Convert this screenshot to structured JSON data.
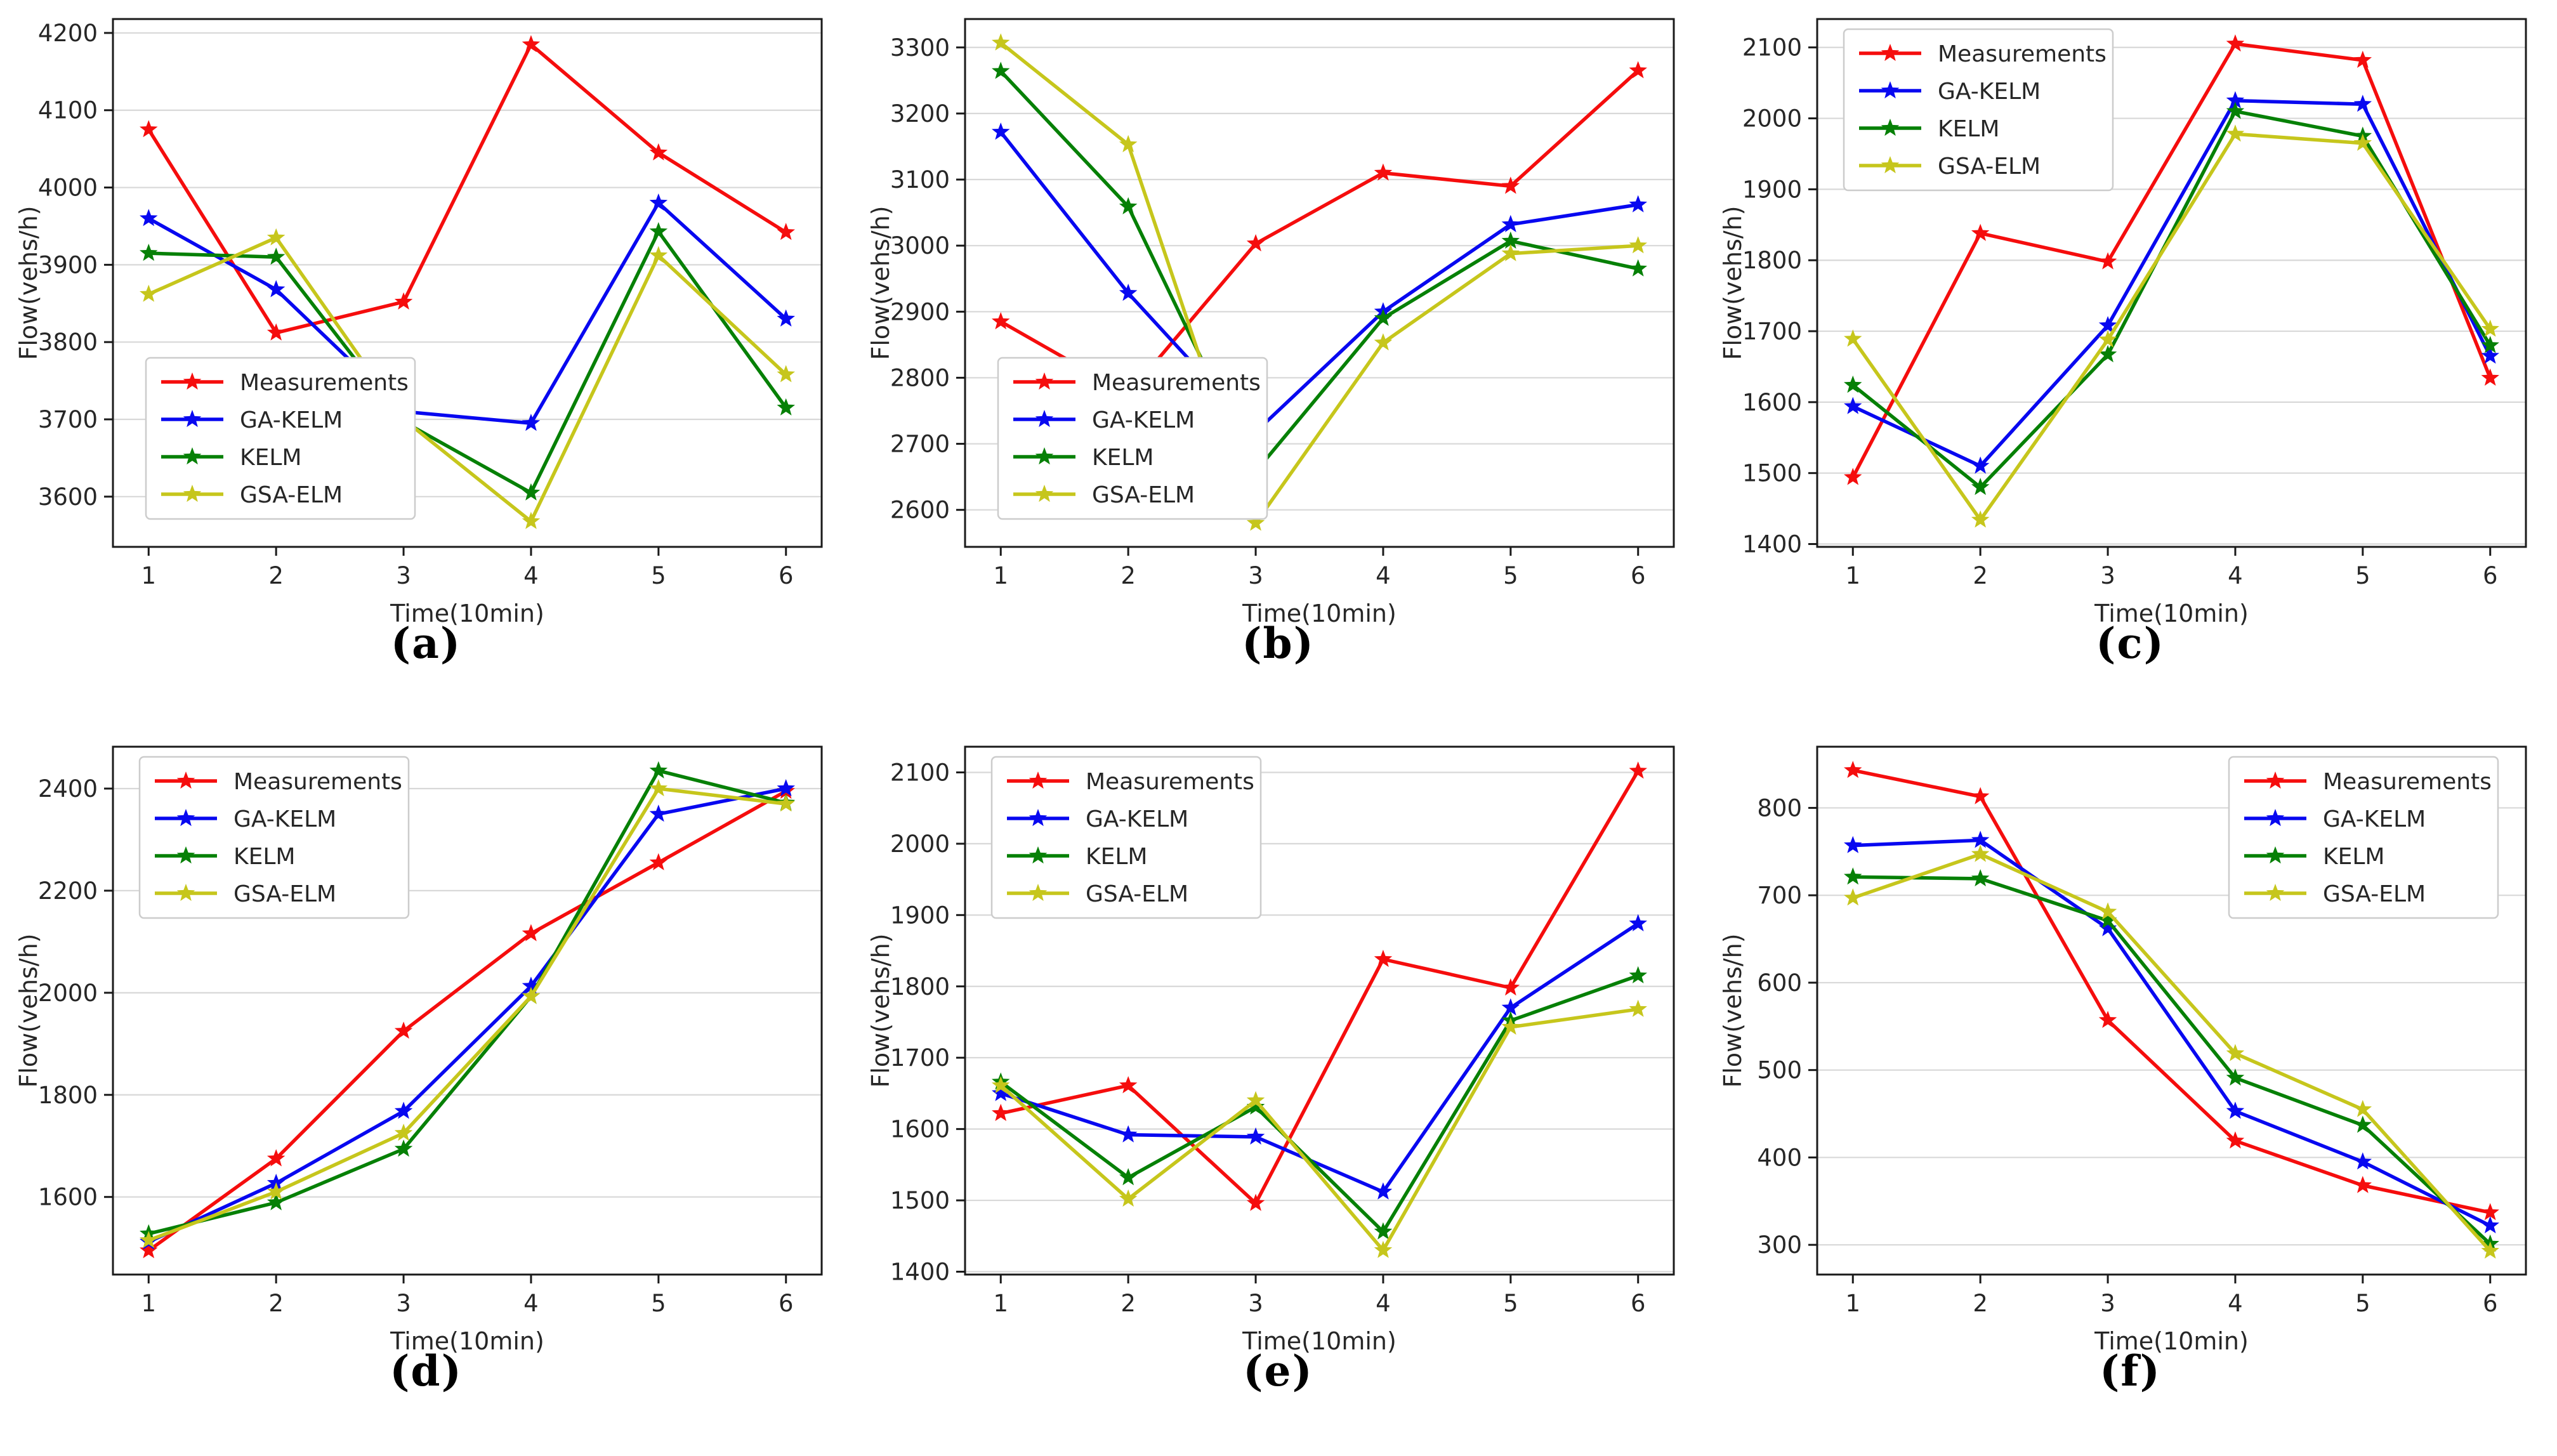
{
  "figure": {
    "xlabel": "Time(10min)",
    "ylabel": "Flow(vehs/h)",
    "legend_entries": [
      "Measurements",
      "GA-KELM",
      "KELM",
      "GSA-ELM"
    ],
    "palette": {
      "measurements": "#f50d0d",
      "ga_kelm": "#0808f0",
      "kelm": "#068006",
      "gsa_elm": "#c6c61c",
      "gridline": "#d8d8d8",
      "spine": "#1a1a1a",
      "text": "#262626"
    }
  },
  "chart_data": [
    {
      "type": "line",
      "caption": "(a)",
      "xlabel": "Time(10min)",
      "ylabel": "Flow(vehs/h)",
      "x": [
        1,
        2,
        3,
        4,
        5,
        6
      ],
      "ylim": [
        3535,
        4218
      ],
      "yticks": [
        3600,
        3700,
        3800,
        3900,
        4000,
        4100,
        4200
      ],
      "legend_position": "bottom-left",
      "grid": "horizontal",
      "series": [
        {
          "name": "Measurements",
          "color": "#f50d0d",
          "marker": "star",
          "values": [
            4075,
            3812,
            3852,
            4185,
            4045,
            3942
          ]
        },
        {
          "name": "GA-KELM",
          "color": "#0808f0",
          "marker": "star",
          "values": [
            3960,
            3868,
            3710,
            3695,
            3980,
            3830
          ]
        },
        {
          "name": "KELM",
          "color": "#068006",
          "marker": "star",
          "values": [
            3915,
            3910,
            3697,
            3605,
            3943,
            3715
          ]
        },
        {
          "name": "GSA-ELM",
          "color": "#c6c61c",
          "marker": "star",
          "values": [
            3862,
            3935,
            3700,
            3568,
            3912,
            3758
          ]
        }
      ]
    },
    {
      "type": "line",
      "caption": "(b)",
      "xlabel": "Time(10min)",
      "ylabel": "Flow(vehs/h)",
      "x": [
        1,
        2,
        3,
        4,
        5,
        6
      ],
      "ylim": [
        2544,
        3343
      ],
      "yticks": [
        2600,
        2700,
        2800,
        2900,
        3000,
        3100,
        3200,
        3300
      ],
      "legend_position": "bottom-left",
      "grid": "horizontal",
      "series": [
        {
          "name": "Measurements",
          "color": "#f50d0d",
          "marker": "star",
          "values": [
            2885,
            2775,
            3003,
            3110,
            3090,
            3265
          ]
        },
        {
          "name": "GA-KELM",
          "color": "#0808f0",
          "marker": "star",
          "values": [
            3172,
            2928,
            2718,
            2900,
            3032,
            3062
          ]
        },
        {
          "name": "KELM",
          "color": "#068006",
          "marker": "star",
          "values": [
            3264,
            3059,
            2658,
            2890,
            3007,
            2965
          ]
        },
        {
          "name": "GSA-ELM",
          "color": "#c6c61c",
          "marker": "star",
          "values": [
            3307,
            3153,
            2580,
            2853,
            2988,
            3000
          ]
        }
      ]
    },
    {
      "type": "line",
      "caption": "(c)",
      "xlabel": "Time(10min)",
      "ylabel": "Flow(vehs/h)",
      "x": [
        1,
        2,
        3,
        4,
        5,
        6
      ],
      "ylim": [
        1396,
        2140
      ],
      "yticks": [
        1400,
        1500,
        1600,
        1700,
        1800,
        1900,
        2000,
        2100
      ],
      "legend_position": "top-left",
      "grid": "horizontal",
      "series": [
        {
          "name": "Measurements",
          "color": "#f50d0d",
          "marker": "star",
          "values": [
            1494,
            1838,
            1798,
            2105,
            2082,
            1634
          ]
        },
        {
          "name": "GA-KELM",
          "color": "#0808f0",
          "marker": "star",
          "values": [
            1594,
            1510,
            1708,
            2025,
            2020,
            1665
          ]
        },
        {
          "name": "KELM",
          "color": "#068006",
          "marker": "star",
          "values": [
            1624,
            1480,
            1667,
            2010,
            1975,
            1680
          ]
        },
        {
          "name": "GSA-ELM",
          "color": "#c6c61c",
          "marker": "star",
          "values": [
            1689,
            1434,
            1688,
            1978,
            1965,
            1703
          ]
        }
      ]
    },
    {
      "type": "line",
      "caption": "(d)",
      "xlabel": "Time(10min)",
      "ylabel": "Flow(vehs/h)",
      "x": [
        1,
        2,
        3,
        4,
        5,
        6
      ],
      "ylim": [
        1448,
        2482
      ],
      "yticks": [
        1600,
        1800,
        2000,
        2200,
        2400
      ],
      "legend_position": "top-left",
      "grid": "horizontal",
      "series": [
        {
          "name": "Measurements",
          "color": "#f50d0d",
          "marker": "star",
          "values": [
            1495,
            1675,
            1925,
            2116,
            2255,
            2395
          ]
        },
        {
          "name": "GA-KELM",
          "color": "#0808f0",
          "marker": "star",
          "values": [
            1512,
            1627,
            1768,
            2013,
            2350,
            2400
          ]
        },
        {
          "name": "KELM",
          "color": "#068006",
          "marker": "star",
          "values": [
            1528,
            1589,
            1694,
            1993,
            2435,
            2372
          ]
        },
        {
          "name": "GSA-ELM",
          "color": "#c6c61c",
          "marker": "star",
          "values": [
            1515,
            1610,
            1725,
            1993,
            2400,
            2370
          ]
        }
      ]
    },
    {
      "type": "line",
      "caption": "(e)",
      "xlabel": "Time(10min)",
      "ylabel": "Flow(vehs/h)",
      "x": [
        1,
        2,
        3,
        4,
        5,
        6
      ],
      "ylim": [
        1396,
        2136
      ],
      "yticks": [
        1400,
        1500,
        1600,
        1700,
        1800,
        1900,
        2000,
        2100
      ],
      "legend_position": "top-left",
      "grid": "horizontal",
      "series": [
        {
          "name": "Measurements",
          "color": "#f50d0d",
          "marker": "star",
          "values": [
            1622,
            1661,
            1496,
            1838,
            1798,
            2102
          ]
        },
        {
          "name": "GA-KELM",
          "color": "#0808f0",
          "marker": "star",
          "values": [
            1650,
            1592,
            1589,
            1512,
            1770,
            1888
          ]
        },
        {
          "name": "KELM",
          "color": "#068006",
          "marker": "star",
          "values": [
            1666,
            1532,
            1631,
            1456,
            1752,
            1815
          ]
        },
        {
          "name": "GSA-ELM",
          "color": "#c6c61c",
          "marker": "star",
          "values": [
            1661,
            1502,
            1640,
            1430,
            1743,
            1768
          ]
        }
      ]
    },
    {
      "type": "line",
      "caption": "(f)",
      "xlabel": "Time(10min)",
      "ylabel": "Flow(vehs/h)",
      "x": [
        1,
        2,
        3,
        4,
        5,
        6
      ],
      "ylim": [
        266,
        870
      ],
      "yticks": [
        300,
        400,
        500,
        600,
        700,
        800
      ],
      "legend_position": "top-right",
      "grid": "horizontal",
      "series": [
        {
          "name": "Measurements",
          "color": "#f50d0d",
          "marker": "star",
          "values": [
            843,
            813,
            557,
            419,
            368,
            337
          ]
        },
        {
          "name": "GA-KELM",
          "color": "#0808f0",
          "marker": "star",
          "values": [
            757,
            763,
            662,
            453,
            395,
            322
          ]
        },
        {
          "name": "KELM",
          "color": "#068006",
          "marker": "star",
          "values": [
            721,
            719,
            671,
            491,
            437,
            301
          ]
        },
        {
          "name": "GSA-ELM",
          "color": "#c6c61c",
          "marker": "star",
          "values": [
            697,
            747,
            681,
            519,
            455,
            293
          ]
        }
      ]
    }
  ]
}
